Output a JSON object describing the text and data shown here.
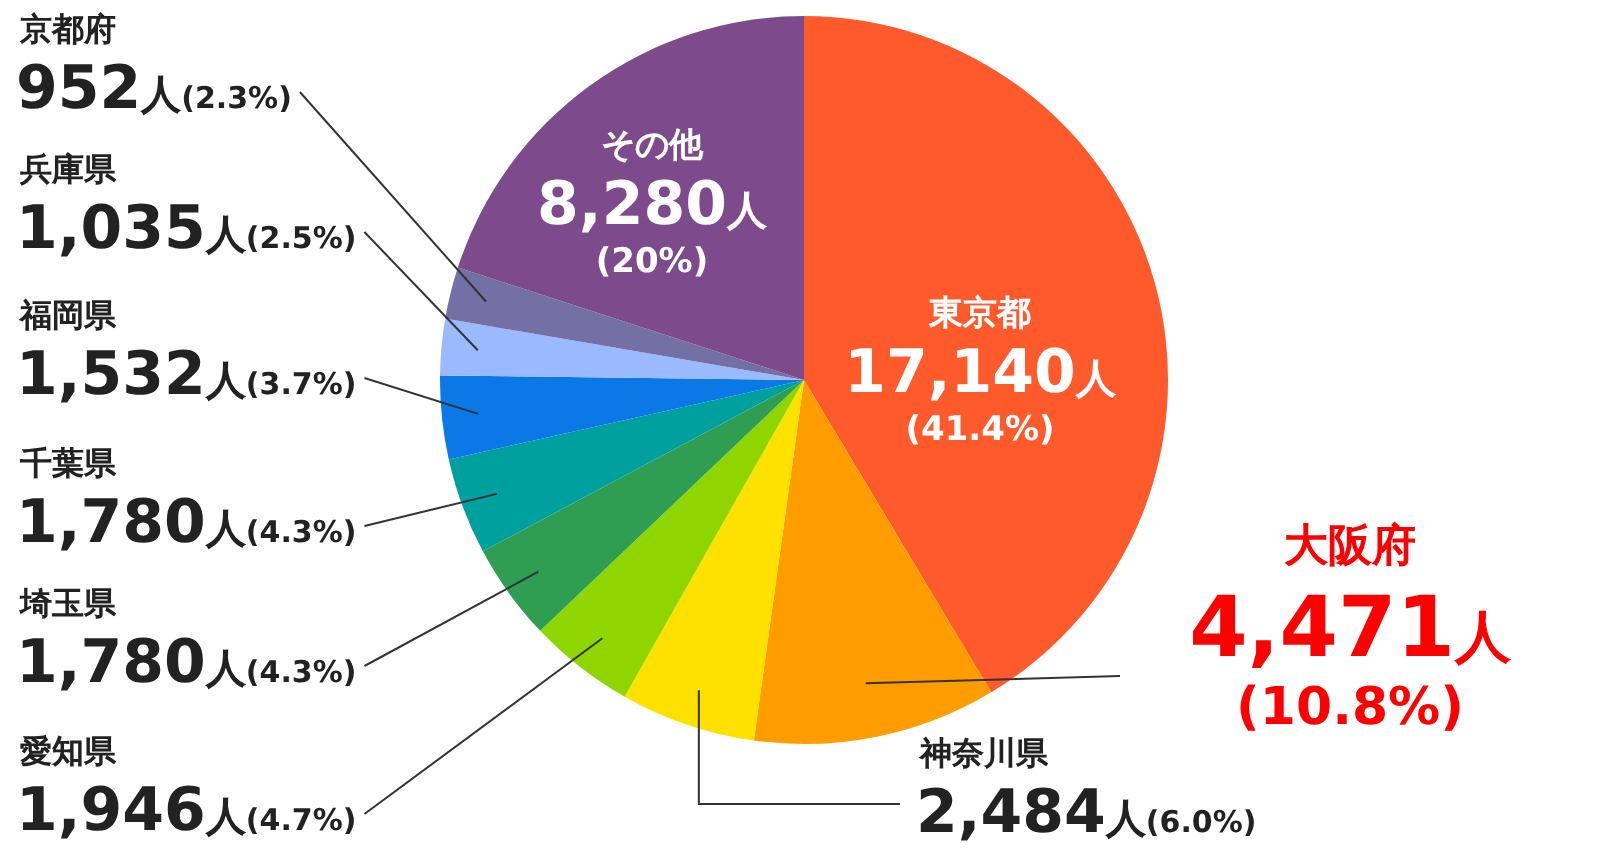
{
  "chart_data": {
    "type": "pie",
    "categories": [
      "東京都",
      "大阪府",
      "神奈川県",
      "愛知県",
      "埼玉県",
      "千葉県",
      "福岡県",
      "兵庫県",
      "京都府",
      "その他"
    ],
    "values": [
      17140,
      4471,
      2484,
      1946,
      1780,
      1780,
      1532,
      1035,
      952,
      8280
    ],
    "colors": [
      "#ff5a2b",
      "#ff9d00",
      "#ffe100",
      "#8fd600",
      "#2f9d52",
      "#00a09e",
      "#0a78e6",
      "#9ab9ff",
      "#7370a6",
      "#7d4a8c"
    ],
    "value_labels": [
      "17,140人\n(41.4%)",
      "4,471人\n(10.8%)",
      "2,484人(6.0%)",
      "1,946人(4.7%)",
      "1,780人(4.3%)",
      "1,780人(4.3%)",
      "1,532人(3.7%)",
      "1,035人(2.5%)",
      "952人(2.3%)",
      "8,280人\n(20%)"
    ],
    "legend": false
  }
}
